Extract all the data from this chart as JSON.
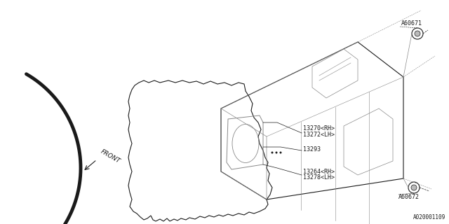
{
  "bg_color": "#ffffff",
  "line_color": "#1a1a1a",
  "gray_color": "#888888",
  "labels": {
    "part1": "13270<RH>",
    "part2": "13272<LH>",
    "part3": "13293",
    "part4": "13264<RH>",
    "part5": "13278<LH>",
    "part6": "A60671",
    "part7": "A60672",
    "footer": "A020001109",
    "front": "FRONT"
  },
  "figsize": [
    6.4,
    3.2
  ],
  "dpi": 100
}
